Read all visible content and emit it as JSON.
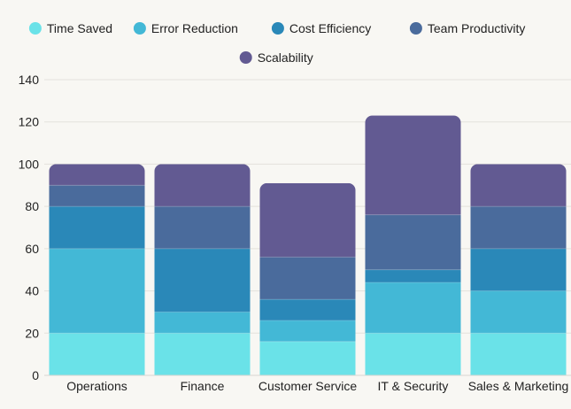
{
  "chart_data": {
    "type": "bar",
    "stacked": true,
    "title": "",
    "xlabel": "",
    "ylabel": "",
    "ylim": [
      0,
      140
    ],
    "yticks": [
      0,
      20,
      40,
      60,
      80,
      100,
      120,
      140
    ],
    "grid": true,
    "legend_position": "top",
    "categories": [
      "Operations",
      "Finance",
      "Customer Service",
      "IT & Security",
      "Sales & Marketing"
    ],
    "series": [
      {
        "name": "Time Saved",
        "color": "#6ae2e8",
        "values": [
          20,
          20,
          16,
          20,
          20
        ]
      },
      {
        "name": "Error Reduction",
        "color": "#43b8d6",
        "values": [
          40,
          10,
          10,
          24,
          20
        ]
      },
      {
        "name": "Cost Efficiency",
        "color": "#2a88b8",
        "values": [
          20,
          30,
          10,
          6,
          20
        ]
      },
      {
        "name": "Team Productivity",
        "color": "#4a6b9c",
        "values": [
          10,
          20,
          20,
          26,
          20
        ]
      },
      {
        "name": "Scalability",
        "color": "#625a92",
        "values": [
          10,
          20,
          35,
          47,
          20
        ]
      }
    ]
  }
}
